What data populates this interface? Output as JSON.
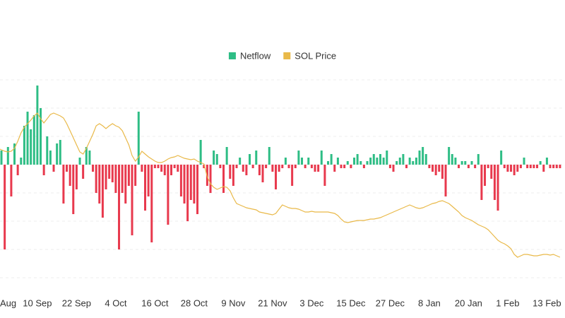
{
  "chart_data": {
    "type": "bar-line",
    "categories": [
      "Aug",
      null,
      null,
      null,
      null,
      null,
      null,
      null,
      null,
      null,
      null,
      null,
      "10 Sep",
      null,
      null,
      null,
      null,
      null,
      null,
      null,
      null,
      null,
      null,
      null,
      "22 Sep",
      null,
      null,
      null,
      null,
      null,
      null,
      null,
      null,
      null,
      null,
      null,
      "4 Oct",
      null,
      null,
      null,
      null,
      null,
      null,
      null,
      null,
      null,
      null,
      null,
      "16 Oct",
      null,
      null,
      null,
      null,
      null,
      null,
      null,
      null,
      null,
      null,
      null,
      "28 Oct",
      null,
      null,
      null,
      null,
      null,
      null,
      null,
      null,
      null,
      null,
      null,
      "9 Nov",
      null,
      null,
      null,
      null,
      null,
      null,
      null,
      null,
      null,
      null,
      null,
      "21 Nov",
      null,
      null,
      null,
      null,
      null,
      null,
      null,
      null,
      null,
      null,
      null,
      "3 Dec",
      null,
      null,
      null,
      null,
      null,
      null,
      null,
      null,
      null,
      null,
      null,
      "15 Dec",
      null,
      null,
      null,
      null,
      null,
      null,
      null,
      null,
      null,
      null,
      null,
      "27 Dec",
      null,
      null,
      null,
      null,
      null,
      null,
      null,
      null,
      null,
      null,
      null,
      "8 Jan",
      null,
      null,
      null,
      null,
      null,
      null,
      null,
      null,
      null,
      null,
      null,
      "20 Jan",
      null,
      null,
      null,
      null,
      null,
      null,
      null,
      null,
      null,
      null,
      null,
      "1 Feb",
      null,
      null,
      null,
      null,
      null,
      null,
      null,
      null,
      null,
      null,
      null,
      "13 Feb",
      null,
      null,
      null,
      null
    ],
    "series": [
      {
        "name": "Netflow",
        "color": "#2ebd85",
        "negative_color": "#e8394d",
        "values": [
          -45,
          20,
          -120,
          25,
          -45,
          30,
          -15,
          10,
          55,
          75,
          50,
          70,
          112,
          80,
          -15,
          40,
          20,
          -10,
          30,
          35,
          -55,
          -10,
          -30,
          -70,
          -35,
          10,
          -20,
          25,
          20,
          -10,
          -40,
          -55,
          -75,
          -35,
          -20,
          -25,
          -40,
          -120,
          -40,
          -55,
          -30,
          -100,
          -30,
          75,
          -10,
          -65,
          -45,
          -110,
          -5,
          -5,
          -10,
          -15,
          -85,
          -15,
          -5,
          -10,
          -45,
          -55,
          -80,
          -50,
          -55,
          -70,
          35,
          -5,
          -30,
          -40,
          20,
          15,
          -5,
          -40,
          25,
          -20,
          -30,
          -5,
          10,
          -10,
          -15,
          15,
          -5,
          20,
          -15,
          -25,
          -5,
          25,
          -10,
          -35,
          -10,
          -5,
          10,
          -5,
          -30,
          -5,
          20,
          10,
          -5,
          10,
          -5,
          -10,
          -10,
          20,
          -30,
          5,
          15,
          -10,
          10,
          -5,
          -5,
          5,
          -5,
          10,
          15,
          5,
          -5,
          5,
          10,
          15,
          10,
          15,
          10,
          20,
          -5,
          -10,
          5,
          10,
          15,
          -5,
          10,
          5,
          10,
          20,
          25,
          15,
          -5,
          -10,
          -15,
          -10,
          -20,
          -45,
          25,
          15,
          10,
          -5,
          5,
          5,
          -5,
          5,
          -5,
          15,
          -50,
          -30,
          -5,
          -20,
          -50,
          -65,
          20,
          -5,
          -10,
          -10,
          -15,
          -10,
          -5,
          10,
          -5,
          -5,
          -5,
          -5,
          5,
          -10,
          10,
          -5,
          -5,
          -5,
          -5
        ]
      },
      {
        "name": "SOL Price",
        "color": "#e9b949",
        "axis": "y2",
        "values": [
          190,
          188,
          186,
          185,
          186,
          190,
          200,
          212,
          220,
          225,
          230,
          236,
          240,
          232,
          226,
          232,
          238,
          240,
          238,
          236,
          233,
          225,
          215,
          205,
          195,
          185,
          182,
          190,
          200,
          210,
          222,
          225,
          222,
          218,
          222,
          225,
          222,
          220,
          215,
          205,
          195,
          180,
          172,
          178,
          186,
          182,
          178,
          175,
          172,
          170,
          170,
          172,
          175,
          177,
          178,
          180,
          178,
          176,
          175,
          174,
          175,
          172,
          170,
          168,
          150,
          140,
          135,
          132,
          134,
          136,
          135,
          130,
          120,
          112,
          110,
          108,
          106,
          105,
          104,
          103,
          100,
          99,
          98,
          97,
          96,
          98,
          104,
          110,
          108,
          106,
          105,
          105,
          104,
          102,
          100,
          100,
          101,
          100,
          100,
          100,
          100,
          100,
          99,
          98,
          95,
          90,
          86,
          85,
          86,
          87,
          88,
          88,
          88,
          89,
          90,
          90,
          91,
          92,
          94,
          96,
          98,
          100,
          102,
          104,
          106,
          108,
          110,
          108,
          106,
          105,
          106,
          108,
          110,
          112,
          113,
          115,
          116,
          114,
          112,
          108,
          104,
          100,
          95,
          92,
          90,
          88,
          85,
          82,
          80,
          78,
          75,
          70,
          65,
          60,
          57,
          55,
          52,
          48,
          40,
          36,
          38,
          40,
          40,
          39,
          38,
          38,
          39,
          40,
          40,
          39,
          40,
          38,
          36
        ]
      }
    ],
    "ylim": [
      -180,
      120
    ],
    "y2lim": [
      -13,
      287
    ],
    "grid": true
  }
}
